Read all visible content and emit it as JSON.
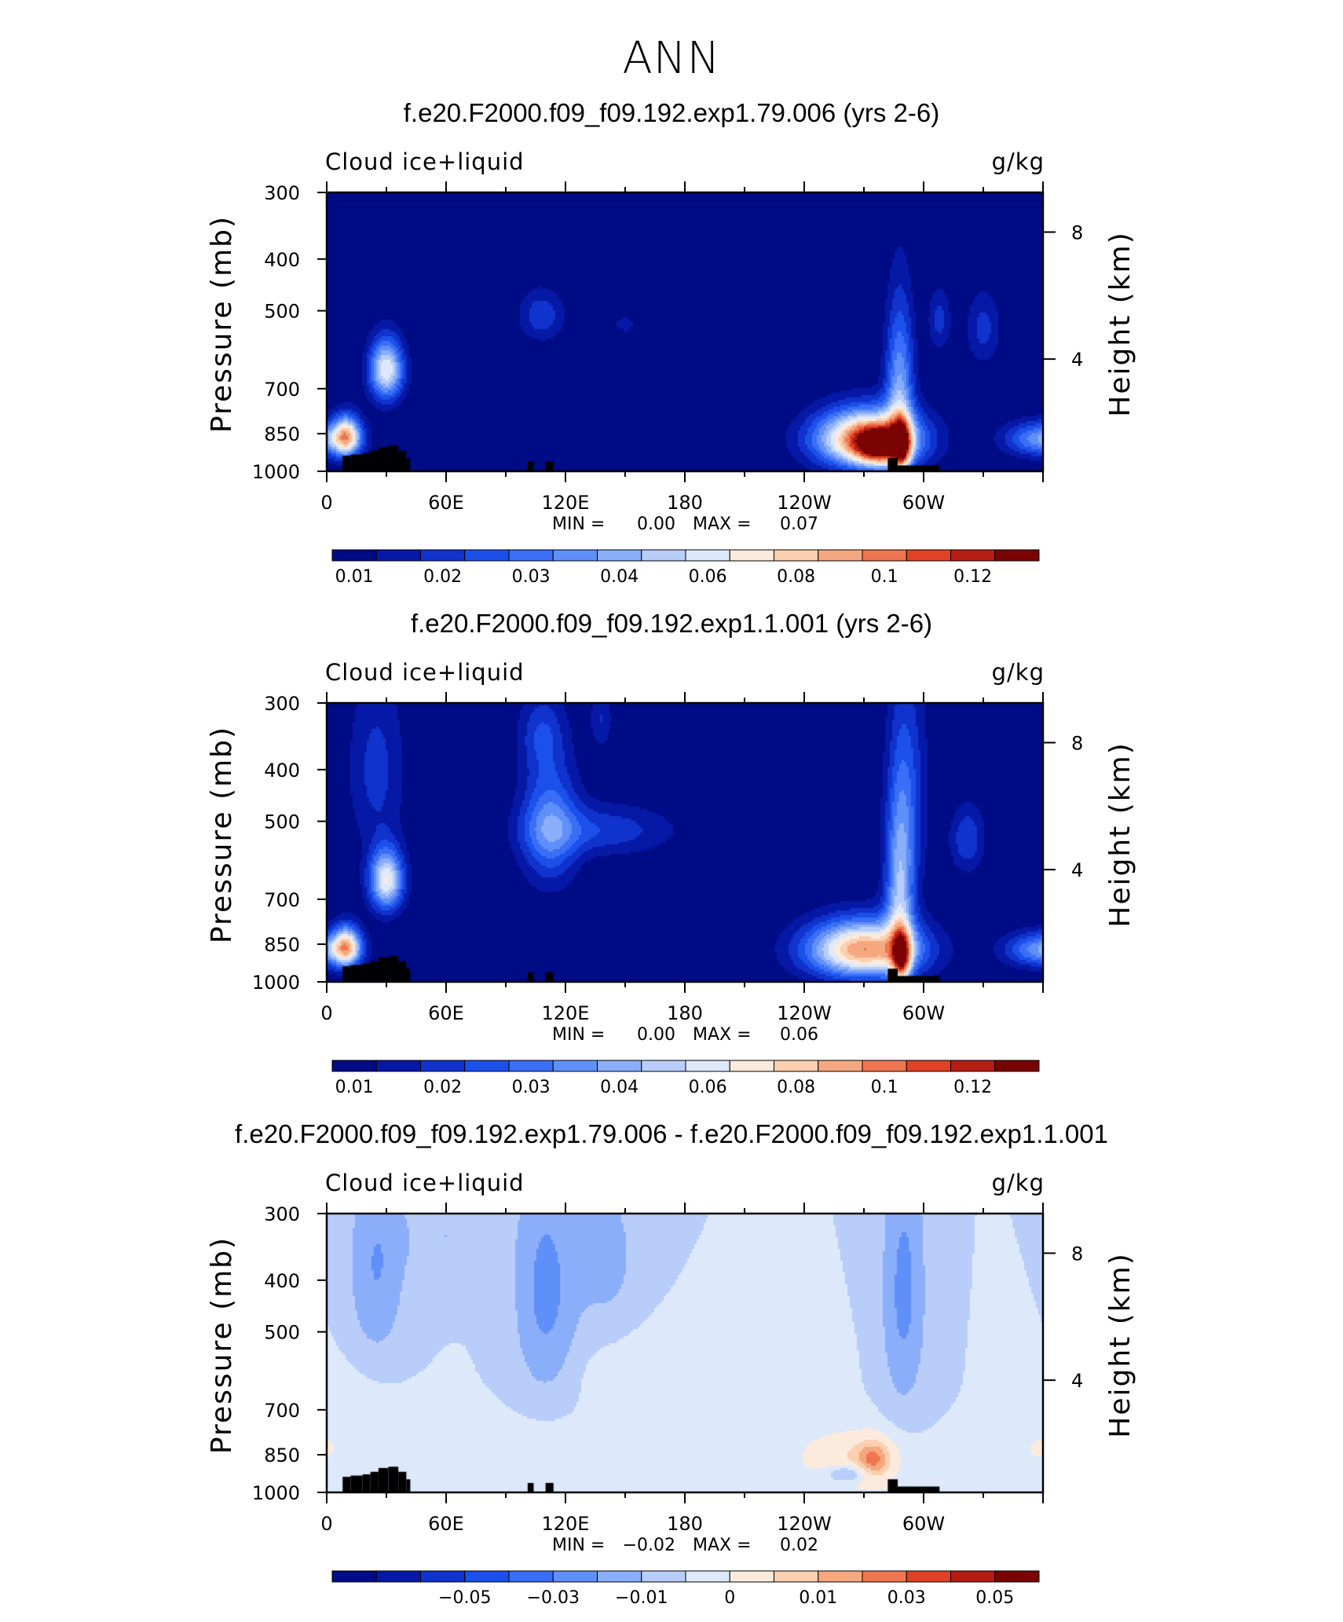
{
  "page_title": "ANN",
  "chart_data": [
    {
      "type": "heatmap",
      "title": "f.e20.F2000.f09_f09.192.exp1.79.006 (yrs 2-6)",
      "variable": "Cloud ice+liquid",
      "units": "g/kg",
      "xticks": [
        "0",
        "60E",
        "120E",
        "180",
        "120W",
        "60W"
      ],
      "yticks": [
        "300",
        "400",
        "500",
        "700",
        "850",
        "1000"
      ],
      "ylabel": "Pressure (mb)",
      "ylabel2": "Height (km)",
      "y2ticks": [
        "8",
        "4"
      ],
      "ylim": [
        1000,
        300
      ],
      "min_label": "MIN =",
      "min_value": "0.00",
      "max_label": "MAX =",
      "max_value": "0.07",
      "colorbar_labels": [
        "0.01",
        "0.02",
        "0.03",
        "0.04",
        "0.06",
        "0.08",
        "0.1",
        "0.12"
      ],
      "blobs": [
        {
          "lon": 30,
          "p": 645,
          "amp": 0.045,
          "w": 6,
          "h": 60
        },
        {
          "lon": 10,
          "p": 860,
          "amp": 0.045,
          "w": 5,
          "h": 55
        },
        {
          "lon": 108,
          "p": 510,
          "amp": 0.014,
          "w": 8,
          "h": 40
        },
        {
          "lon": 150,
          "p": 530,
          "amp": 0.008,
          "w": 4,
          "h": 15
        },
        {
          "lon": 272,
          "p": 870,
          "amp": 0.068,
          "w": 18,
          "h": 75
        },
        {
          "lon": 278,
          "p": 900,
          "amp": 0.04,
          "w": 8,
          "h": 50
        },
        {
          "lon": 288,
          "p": 700,
          "amp": 0.03,
          "w": 5,
          "h": 170
        },
        {
          "lon": 289,
          "p": 900,
          "amp": 0.04,
          "w": 3,
          "h": 70
        },
        {
          "lon": 308,
          "p": 520,
          "amp": 0.012,
          "w": 4,
          "h": 50
        },
        {
          "lon": 330,
          "p": 540,
          "amp": 0.012,
          "w": 6,
          "h": 60
        },
        {
          "lon": 358,
          "p": 870,
          "amp": 0.028,
          "w": 12,
          "h": 45
        }
      ]
    },
    {
      "type": "heatmap",
      "title": "f.e20.F2000.f09_f09.192.exp1.1.001 (yrs 2-6)",
      "variable": "Cloud ice+liquid",
      "units": "g/kg",
      "xticks": [
        "0",
        "60E",
        "120E",
        "180",
        "120W",
        "60W"
      ],
      "yticks": [
        "300",
        "400",
        "500",
        "700",
        "850",
        "1000"
      ],
      "ylabel": "Pressure (mb)",
      "ylabel2": "Height (km)",
      "y2ticks": [
        "8",
        "4"
      ],
      "ylim": [
        1000,
        300
      ],
      "min_label": "MIN =",
      "min_value": "0.00",
      "max_label": "MAX =",
      "max_value": "0.06",
      "colorbar_labels": [
        "0.01",
        "0.02",
        "0.03",
        "0.04",
        "0.06",
        "0.08",
        "0.1",
        "0.12"
      ],
      "blobs": [
        {
          "lon": 30,
          "p": 645,
          "amp": 0.045,
          "w": 6,
          "h": 60
        },
        {
          "lon": 10,
          "p": 860,
          "amp": 0.045,
          "w": 5,
          "h": 55
        },
        {
          "lon": 25,
          "p": 400,
          "amp": 0.012,
          "w": 10,
          "h": 110
        },
        {
          "lon": 112,
          "p": 510,
          "amp": 0.025,
          "w": 10,
          "h": 95
        },
        {
          "lon": 138,
          "p": 520,
          "amp": 0.014,
          "w": 25,
          "h": 40
        },
        {
          "lon": 108,
          "p": 340,
          "amp": 0.012,
          "w": 8,
          "h": 40
        },
        {
          "lon": 138,
          "p": 320,
          "amp": 0.01,
          "w": 4,
          "h": 30
        },
        {
          "lon": 270,
          "p": 870,
          "amp": 0.06,
          "w": 20,
          "h": 75
        },
        {
          "lon": 288,
          "p": 700,
          "amp": 0.032,
          "w": 5,
          "h": 190
        },
        {
          "lon": 289,
          "p": 905,
          "amp": 0.04,
          "w": 3,
          "h": 70
        },
        {
          "lon": 292,
          "p": 440,
          "amp": 0.014,
          "w": 7,
          "h": 160
        },
        {
          "lon": 322,
          "p": 540,
          "amp": 0.015,
          "w": 6,
          "h": 55
        },
        {
          "lon": 358,
          "p": 870,
          "amp": 0.028,
          "w": 12,
          "h": 45
        }
      ]
    },
    {
      "type": "heatmap",
      "title": "f.e20.F2000.f09_f09.192.exp1.79.006 - f.e20.F2000.f09_f09.192.exp1.1.001",
      "variable": "Cloud ice+liquid",
      "units": "g/kg",
      "xticks": [
        "0",
        "60E",
        "120E",
        "180",
        "120W",
        "60W"
      ],
      "yticks": [
        "300",
        "400",
        "500",
        "700",
        "850",
        "1000"
      ],
      "ylabel": "Pressure (mb)",
      "ylabel2": "Height (km)",
      "y2ticks": [
        "8",
        "4"
      ],
      "ylim": [
        1000,
        300
      ],
      "min_label": "MIN =",
      "min_value": "−0.02",
      "max_label": "MAX =",
      "max_value": "0.02",
      "colorbar_labels": [
        "−0.05",
        "−0.03",
        "−0.01",
        "0",
        "0.01",
        "0.03",
        "0.05"
      ],
      "blobs": [
        {
          "lon": 25,
          "p": 380,
          "amp": -0.01,
          "w": 9,
          "h": 110
        },
        {
          "lon": 60,
          "p": 330,
          "amp": -0.004,
          "w": 18,
          "h": 50
        },
        {
          "lon": 110,
          "p": 420,
          "amp": -0.012,
          "w": 10,
          "h": 140
        },
        {
          "lon": 140,
          "p": 360,
          "amp": -0.006,
          "w": 12,
          "h": 90
        },
        {
          "lon": 290,
          "p": 420,
          "amp": -0.012,
          "w": 7,
          "h": 160
        },
        {
          "lon": 262,
          "p": 920,
          "amp": -0.01,
          "w": 8,
          "h": 25
        },
        {
          "lon": 180,
          "p": 600,
          "amp": 0.004,
          "w": 30,
          "h": 70
        },
        {
          "lon": 262,
          "p": 860,
          "amp": 0.009,
          "w": 18,
          "h": 70
        },
        {
          "lon": 275,
          "p": 870,
          "amp": 0.016,
          "w": 6,
          "h": 50
        },
        {
          "lon": 100,
          "p": 840,
          "amp": 0.003,
          "w": 40,
          "h": 70
        },
        {
          "lon": 15,
          "p": 820,
          "amp": 0.003,
          "w": 14,
          "h": 150
        },
        {
          "lon": 355,
          "p": 830,
          "amp": 0.003,
          "w": 8,
          "h": 60
        },
        {
          "lon": 310,
          "p": 980,
          "amp": 0.003,
          "w": 50,
          "h": 20
        }
      ]
    }
  ]
}
